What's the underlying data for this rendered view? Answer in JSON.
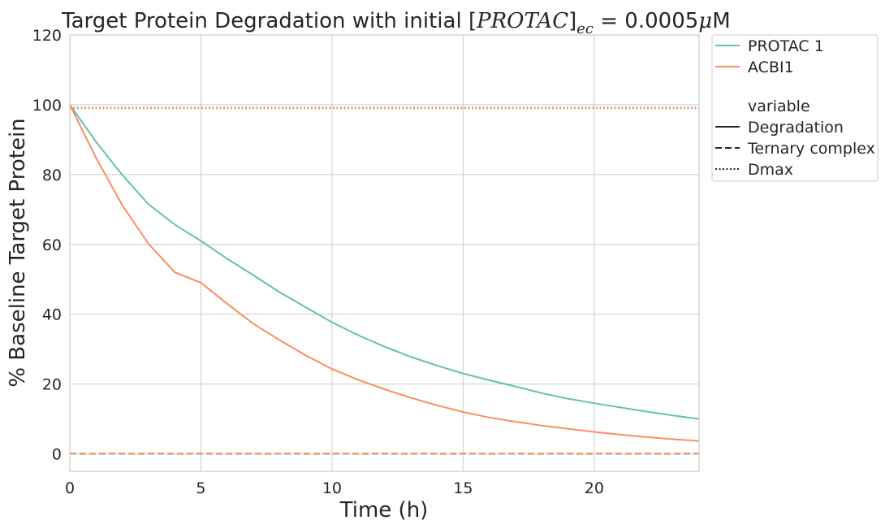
{
  "chart_data": {
    "type": "line",
    "title": {
      "prefix": "Target Protein Degradation with initial ",
      "bracket_open": "[",
      "var_name": "PROTAC",
      "bracket_close": "]",
      "subscript": "ec",
      "equals_value": " = 0.0005",
      "mu": "μ",
      "unit": "M"
    },
    "xlabel": "Time (h)",
    "ylabel": "% Baseline Target Protein",
    "xlim": [
      0,
      24
    ],
    "ylim": [
      -5,
      120
    ],
    "xticks": [
      0,
      5,
      10,
      15,
      20
    ],
    "yticks": [
      0,
      20,
      40,
      60,
      80,
      100,
      120
    ],
    "grid": true,
    "legend_position": "outside-top-right",
    "x": [
      0,
      1,
      2,
      3,
      4,
      5,
      6,
      7,
      8,
      9,
      10,
      11,
      12,
      13,
      14,
      15,
      16,
      17,
      18,
      19,
      20,
      21,
      22,
      23,
      24
    ],
    "series": [
      {
        "name": "PROTAC 1",
        "color": "#66c2a5",
        "variable": "Degradation",
        "values": [
          100,
          89.4,
          79.9,
          71.5,
          65.7,
          61,
          55.9,
          51.2,
          46.3,
          42,
          37.7,
          34,
          30.7,
          27.8,
          25.3,
          23,
          21.1,
          19.3,
          17.4,
          15.8,
          14.5,
          13.3,
          12.1,
          11,
          10
        ]
      },
      {
        "name": "ACBI1",
        "color": "#fc8d62",
        "variable": "Degradation",
        "values": [
          100,
          84.8,
          71.2,
          60.2,
          52,
          49,
          43,
          37.3,
          32.6,
          28.2,
          24.3,
          21.2,
          18.5,
          16.1,
          13.9,
          12,
          10.4,
          9.2,
          8.1,
          7.2,
          6.3,
          5.5,
          4.8,
          4.2,
          3.7
        ]
      },
      {
        "name": "PROTAC 1",
        "color": "#66c2a5",
        "variable": "Ternary complex",
        "values": [
          0,
          0,
          0,
          0,
          0,
          0,
          0,
          0,
          0,
          0,
          0,
          0,
          0,
          0,
          0,
          0,
          0,
          0,
          0,
          0,
          0,
          0,
          0,
          0,
          0
        ]
      },
      {
        "name": "ACBI1",
        "color": "#fc8d62",
        "variable": "Ternary complex",
        "values": [
          0.1,
          0.1,
          0.1,
          0.1,
          0.1,
          0.1,
          0.1,
          0.1,
          0.1,
          0.1,
          0.1,
          0.1,
          0.1,
          0.1,
          0.1,
          0.1,
          0.1,
          0.1,
          0.1,
          0.1,
          0.1,
          0.1,
          0.1,
          0.1,
          0.1
        ]
      },
      {
        "name": "PROTAC 1",
        "color": "#66c2a5",
        "variable": "Dmax",
        "values": [
          99.2,
          99.2,
          99.2,
          99.2,
          99.2,
          99.2,
          99.2,
          99.2,
          99.2,
          99.2,
          99.2,
          99.2,
          99.2,
          99.2,
          99.2,
          99.2,
          99.2,
          99.2,
          99.2,
          99.2,
          99.2,
          99.2,
          99.2,
          99.2,
          99.2
        ]
      },
      {
        "name": "ACBI1",
        "color": "#fc8d62",
        "variable": "Dmax",
        "values": [
          99,
          99,
          99,
          99,
          99,
          99,
          99,
          99,
          99,
          99,
          99,
          99,
          99,
          99,
          99,
          99,
          99,
          99,
          99,
          99,
          99,
          99,
          99,
          99,
          99
        ]
      }
    ],
    "legend": {
      "hue_entries": [
        {
          "label": "PROTAC 1",
          "color": "#66c2a5"
        },
        {
          "label": "ACBI1",
          "color": "#fc8d62"
        }
      ],
      "style_title": "variable",
      "style_entries": [
        {
          "label": "Degradation",
          "dash": "solid"
        },
        {
          "label": "Ternary complex",
          "dash": "dashed"
        },
        {
          "label": "Dmax",
          "dash": "dotted"
        }
      ]
    }
  }
}
